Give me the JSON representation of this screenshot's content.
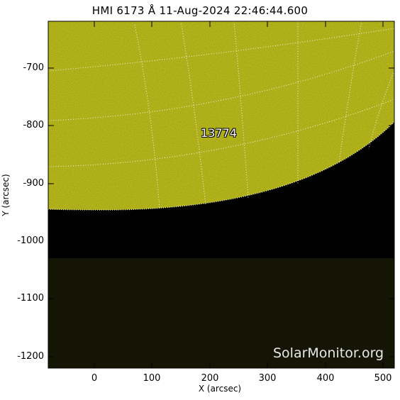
{
  "title": "HMI 6173 Å 11-Aug-2024 22:46:44.600",
  "x_axis": {
    "label": "X (arcsec)",
    "ticks": [
      "0",
      "100",
      "200",
      "300",
      "400",
      "500"
    ]
  },
  "y_axis": {
    "label": "Y (arcsec)",
    "ticks": [
      "-700",
      "-800",
      "-900",
      "-1000",
      "-1100",
      "-1200"
    ]
  },
  "region_label": "13774",
  "watermark": "SolarMonitor.org",
  "colors": {
    "disk": "#c8c81e",
    "space": "#000000",
    "dim_band": "#151505",
    "grid": "#ffffff"
  }
}
